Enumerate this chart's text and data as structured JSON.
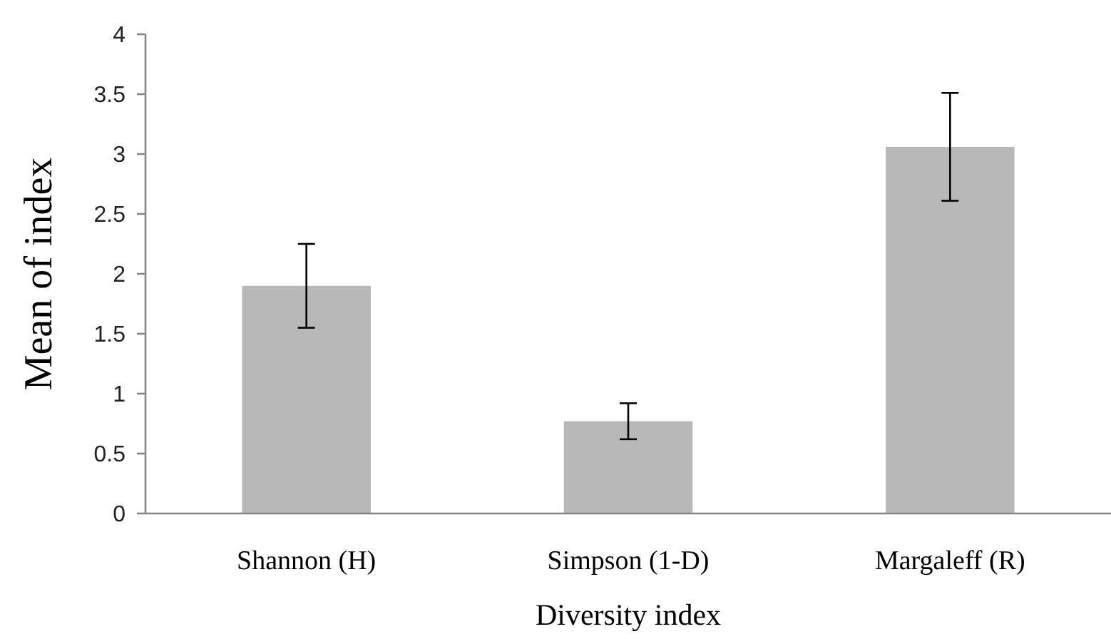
{
  "chart_data": {
    "type": "bar",
    "xlabel": "Diversity index",
    "ylabel": "Mean of index",
    "categories": [
      "Shannon (H)",
      "Simpson (1-D)",
      "Margaleff (R)"
    ],
    "values": [
      1.9,
      0.77,
      3.06
    ],
    "errors": [
      0.35,
      0.15,
      0.45
    ],
    "color": "#b8b8b8",
    "ylim": [
      0,
      4
    ],
    "yticks": [
      0,
      0.5,
      1,
      1.5,
      2,
      2.5,
      3,
      3.5,
      4
    ]
  }
}
